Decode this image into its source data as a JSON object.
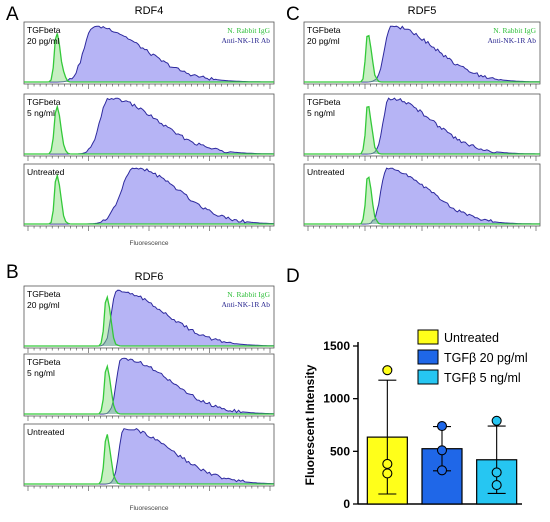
{
  "chart_data": {
    "panels": [
      {
        "letter": "A",
        "title": "RDF4",
        "type": "histogram",
        "legend": [
          "N. Rabbit IgG",
          "Anti-NK-1R Ab"
        ],
        "xlabel": "Fluorescence",
        "rows": [
          {
            "label1": "TGFbeta",
            "label2": "20 pg/ml",
            "green_peak": 0.13,
            "blue_peak": 0.28,
            "blue_width": 0.1,
            "blue_skew": 0.22
          },
          {
            "label1": "TGFbeta",
            "label2": "5 ng/ml",
            "green_peak": 0.13,
            "blue_peak": 0.34,
            "blue_width": 0.09,
            "blue_skew": 0.22
          },
          {
            "label1": "Untreated",
            "label2": "",
            "green_peak": 0.13,
            "blue_peak": 0.44,
            "blue_width": 0.13,
            "blue_skew": 0.18
          }
        ]
      },
      {
        "letter": "C",
        "title": "RDF5",
        "type": "histogram",
        "legend": [
          "N. Rabbit IgG",
          "Anti-NK-1R Ab"
        ],
        "xlabel": "",
        "rows": [
          {
            "label1": "TGFbeta",
            "label2": "20 pg/ml",
            "green_peak": 0.27,
            "blue_peak": 0.37,
            "blue_width": 0.07,
            "blue_skew": 0.22
          },
          {
            "label1": "TGFbeta",
            "label2": "5 ng/ml",
            "green_peak": 0.27,
            "blue_peak": 0.36,
            "blue_width": 0.06,
            "blue_skew": 0.22
          },
          {
            "label1": "Untreated",
            "label2": "",
            "green_peak": 0.27,
            "blue_peak": 0.35,
            "blue_width": 0.06,
            "blue_skew": 0.22
          }
        ]
      },
      {
        "letter": "B",
        "title": "RDF6",
        "type": "histogram",
        "legend": [
          "N. Rabbit IgG",
          "Anti-NK-1R Ab"
        ],
        "xlabel": "Fluorescence",
        "rows": [
          {
            "label1": "TGFbeta",
            "label2": "20 pg/ml",
            "green_peak": 0.33,
            "blue_peak": 0.37,
            "blue_width": 0.05,
            "blue_skew": 0.24
          },
          {
            "label1": "TGFbeta",
            "label2": "5 ng/ml",
            "green_peak": 0.33,
            "blue_peak": 0.39,
            "blue_width": 0.05,
            "blue_skew": 0.24
          },
          {
            "label1": "Untreated",
            "label2": "",
            "green_peak": 0.33,
            "blue_peak": 0.4,
            "blue_width": 0.05,
            "blue_skew": 0.24
          }
        ]
      },
      {
        "letter": "D",
        "type": "bar",
        "ylabel": "Fluorescent Intensity",
        "ylim": [
          0,
          1500
        ],
        "yticks": [
          0,
          500,
          1000,
          1500
        ],
        "categories": [
          "Untreated",
          "TGFβ 20 pg/ml",
          "TGFβ 5 ng/ml"
        ],
        "values": [
          635,
          525,
          420
        ],
        "error": [
          540,
          210,
          320
        ],
        "points": [
          [
            1270,
            380,
            290
          ],
          [
            740,
            510,
            320
          ],
          [
            790,
            300,
            180
          ]
        ],
        "colors": [
          "#FFFF1A",
          "#1F67E8",
          "#26C6F2"
        ]
      }
    ]
  }
}
